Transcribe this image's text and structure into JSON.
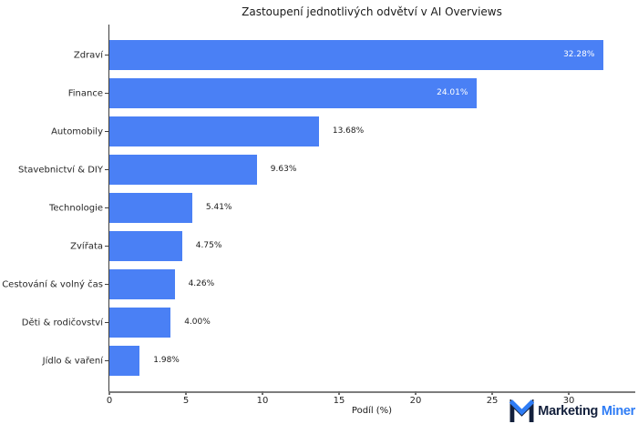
{
  "chart_data": {
    "type": "bar",
    "orientation": "horizontal",
    "title": "Zastoupení jednotlivých odvětví v AI Overviews",
    "xlabel": "Podíl (%)",
    "ylabel": "",
    "categories": [
      "Zdraví",
      "Finance",
      "Automobily",
      "Stavebnictví & DIY",
      "Technologie",
      "Zvířata",
      "Cestování & volný čas",
      "Děti & rodičovství",
      "Jídlo & vaření"
    ],
    "values": [
      32.28,
      24.01,
      13.68,
      9.63,
      5.41,
      4.75,
      4.26,
      4.0,
      1.98
    ],
    "value_labels": [
      "32.28%",
      "24.01%",
      "13.68%",
      "9.63%",
      "5.41%",
      "4.75%",
      "4.26%",
      "4.00%",
      "1.98%"
    ],
    "label_inside": [
      true,
      true,
      false,
      false,
      false,
      false,
      false,
      false,
      false
    ],
    "xlim": [
      0,
      34.34
    ],
    "x_ticks": [
      0,
      5,
      10,
      15,
      20,
      25,
      30
    ],
    "grid": false,
    "legend": null,
    "bar_color": "#4a80f5"
  },
  "branding": {
    "logo_text_primary": "Marketing",
    "logo_text_accent": "Miner",
    "primary_color": "#13203c",
    "accent_color": "#2e7cf5"
  }
}
